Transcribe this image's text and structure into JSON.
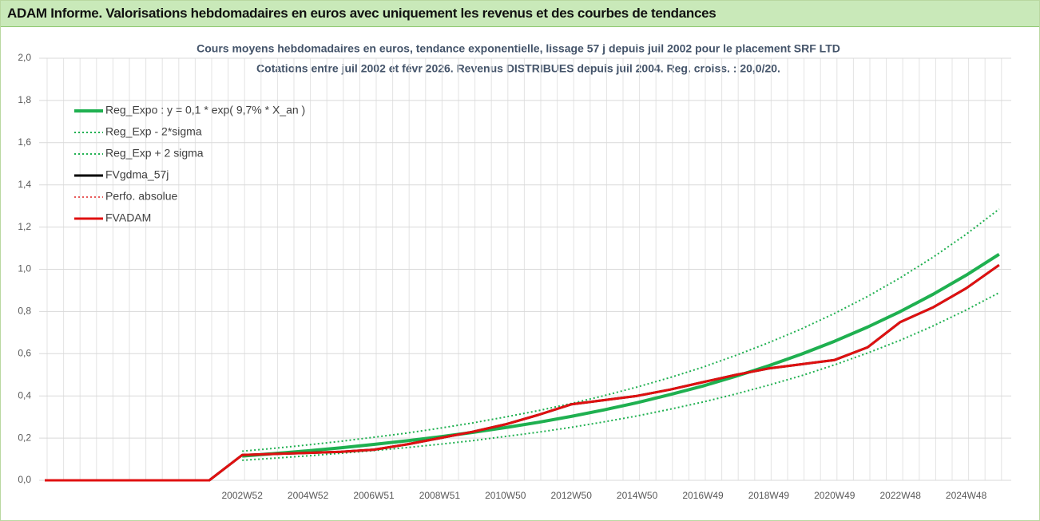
{
  "header": {
    "title": "ADAM Informe. Valorisations hebdomadaires en euros avec uniquement les revenus et des courbes de tendances"
  },
  "chart_data": {
    "type": "line",
    "title": "Cours moyens hebdomadaires en euros, tendance exponentielle, lissage 57 j depuis juil 2002 pour le placement SRF LTD",
    "subtitle": "Cotations entre juil 2002 et févr 2026.  Revenus DISTRIBUES depuis juil 2004.  Reg. croiss. : 20,0/20.",
    "categories": [
      null,
      null,
      null,
      null,
      null,
      null,
      "2002W52",
      null,
      "2004W52",
      null,
      "2006W51",
      null,
      "2008W51",
      null,
      "2010W50",
      null,
      "2012W50",
      null,
      "2014W50",
      null,
      "2016W49",
      null,
      "2018W49",
      null,
      "2020W49",
      null,
      "2022W48",
      null,
      "2024W48",
      null
    ],
    "ylim": [
      0,
      2
    ],
    "yticks": [
      {
        "value": 0,
        "label": "0,0"
      },
      {
        "value": 0.2,
        "label": "0,2"
      },
      {
        "value": 0.4,
        "label": "0,4"
      },
      {
        "value": 0.6,
        "label": "0,6"
      },
      {
        "value": 0.8,
        "label": "0,8"
      },
      {
        "value": 1,
        "label": "1,0"
      },
      {
        "value": 1.2,
        "label": "1,2"
      },
      {
        "value": 1.4,
        "label": "1,4"
      },
      {
        "value": 1.6,
        "label": "1,6"
      },
      {
        "value": 1.8,
        "label": "1,8"
      },
      {
        "value": 2,
        "label": "2,0"
      }
    ],
    "grid": true,
    "legend": "top-left",
    "series": [
      {
        "name": "Reg_Expo : y = 0,1 * exp( 9,7% *  X_an )",
        "color": "#1fb050",
        "line_width": 4,
        "dashed": false,
        "values": [
          null,
          null,
          null,
          null,
          null,
          null,
          0.115,
          0.127,
          0.14,
          0.154,
          0.17,
          0.187,
          0.206,
          0.227,
          0.25,
          0.275,
          0.303,
          0.334,
          0.368,
          0.406,
          0.447,
          0.493,
          0.543,
          0.598,
          0.659,
          0.726,
          0.8,
          0.882,
          0.972,
          1.071
        ]
      },
      {
        "name": "Reg_Exp - 2*sigma",
        "color": "#1fb050",
        "line_width": 2,
        "dashed": true,
        "values": [
          null,
          null,
          null,
          null,
          null,
          null,
          0.095,
          0.105,
          0.116,
          0.128,
          0.141,
          0.155,
          0.171,
          0.188,
          0.208,
          0.228,
          0.251,
          0.277,
          0.305,
          0.337,
          0.371,
          0.409,
          0.451,
          0.496,
          0.547,
          0.603,
          0.664,
          0.732,
          0.807,
          0.889
        ]
      },
      {
        "name": "Reg_Exp + 2 sigma",
        "color": "#1fb050",
        "line_width": 2,
        "dashed": true,
        "values": [
          null,
          null,
          null,
          null,
          null,
          null,
          0.138,
          0.152,
          0.168,
          0.185,
          0.204,
          0.224,
          0.247,
          0.272,
          0.3,
          0.33,
          0.364,
          0.401,
          0.442,
          0.487,
          0.536,
          0.592,
          0.652,
          0.718,
          0.791,
          0.871,
          0.96,
          1.058,
          1.166,
          1.285
        ]
      },
      {
        "name": "FVgdma_57j",
        "color": "#000000",
        "line_width": 3,
        "dashed": false,
        "values": [
          0,
          0,
          0,
          0,
          0,
          0,
          0.12,
          0.125,
          0.13,
          0.135,
          0.145,
          0.17,
          0.2,
          0.23,
          0.265,
          0.31,
          0.36,
          0.38,
          0.4,
          0.43,
          0.465,
          0.5,
          0.53,
          0.55,
          0.57,
          0.63,
          0.75,
          0.82,
          0.91,
          1.02
        ]
      },
      {
        "name": "Perfo. absolue",
        "color": "#e02020",
        "line_width": 1.5,
        "dashed": true,
        "values": [
          0,
          0,
          0,
          0,
          0,
          0,
          0.12,
          0.125,
          0.13,
          0.135,
          0.145,
          0.17,
          0.2,
          0.23,
          0.265,
          0.31,
          0.36,
          0.38,
          0.4,
          0.43,
          0.465,
          0.5,
          0.53,
          0.55,
          0.57,
          0.63,
          0.75,
          0.82,
          0.91,
          1.02
        ]
      },
      {
        "name": "FVADAM",
        "color": "#e01010",
        "line_width": 3,
        "dashed": false,
        "values": [
          0,
          0,
          0,
          0,
          0,
          0,
          0.12,
          0.125,
          0.13,
          0.135,
          0.145,
          0.17,
          0.2,
          0.23,
          0.265,
          0.31,
          0.36,
          0.38,
          0.4,
          0.43,
          0.465,
          0.5,
          0.53,
          0.55,
          0.57,
          0.63,
          0.75,
          0.82,
          0.91,
          1.02
        ]
      }
    ]
  }
}
